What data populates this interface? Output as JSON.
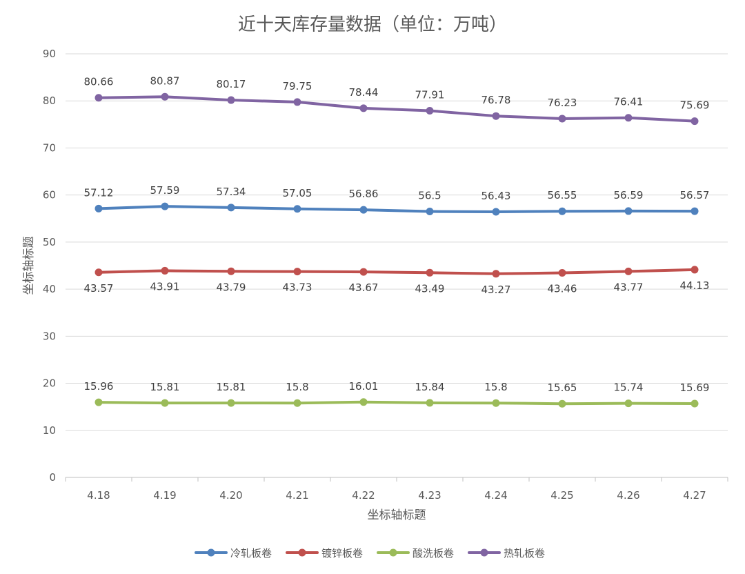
{
  "chart_data": {
    "type": "line",
    "title": "近十天库存量数据（单位：万吨）",
    "xlabel": "坐标轴标题",
    "ylabel": "坐标轴标题",
    "categories": [
      "4.18",
      "4.19",
      "4.20",
      "4.21",
      "4.22",
      "4.23",
      "4.24",
      "4.25",
      "4.26",
      "4.27"
    ],
    "ylim": [
      0,
      90
    ],
    "yticks": [
      "0",
      "10",
      "20",
      "30",
      "40",
      "50",
      "60",
      "70",
      "80",
      "90"
    ],
    "grid": true,
    "legend_position": "bottom",
    "series": [
      {
        "name": "冷轧板卷",
        "color": "#4f81bd",
        "label_position": "above",
        "values": [
          57.12,
          57.59,
          57.34,
          57.05,
          56.86,
          56.5,
          56.43,
          56.55,
          56.59,
          56.57
        ],
        "labels": [
          "57.12",
          "57.59",
          "57.34",
          "57.05",
          "56.86",
          "56.5",
          "56.43",
          "56.55",
          "56.59",
          "56.57"
        ]
      },
      {
        "name": "镀锌板卷",
        "color": "#c0504d",
        "label_position": "below",
        "values": [
          43.57,
          43.91,
          43.79,
          43.73,
          43.67,
          43.49,
          43.27,
          43.46,
          43.77,
          44.13
        ],
        "labels": [
          "43.57",
          "43.91",
          "43.79",
          "43.73",
          "43.67",
          "43.49",
          "43.27",
          "43.46",
          "43.77",
          "44.13"
        ]
      },
      {
        "name": "酸洗板卷",
        "color": "#9bbb59",
        "label_position": "above",
        "values": [
          15.96,
          15.81,
          15.81,
          15.8,
          16.01,
          15.84,
          15.8,
          15.65,
          15.74,
          15.69
        ],
        "labels": [
          "15.96",
          "15.81",
          "15.81",
          "15.8",
          "16.01",
          "15.84",
          "15.8",
          "15.65",
          "15.74",
          "15.69"
        ]
      },
      {
        "name": "热轧板卷",
        "color": "#8064a2",
        "label_position": "above",
        "values": [
          80.66,
          80.87,
          80.17,
          79.75,
          78.44,
          77.91,
          76.78,
          76.23,
          76.41,
          75.69
        ],
        "labels": [
          "80.66",
          "80.87",
          "80.17",
          "79.75",
          "78.44",
          "77.91",
          "76.78",
          "76.23",
          "76.41",
          "75.69"
        ]
      }
    ]
  }
}
